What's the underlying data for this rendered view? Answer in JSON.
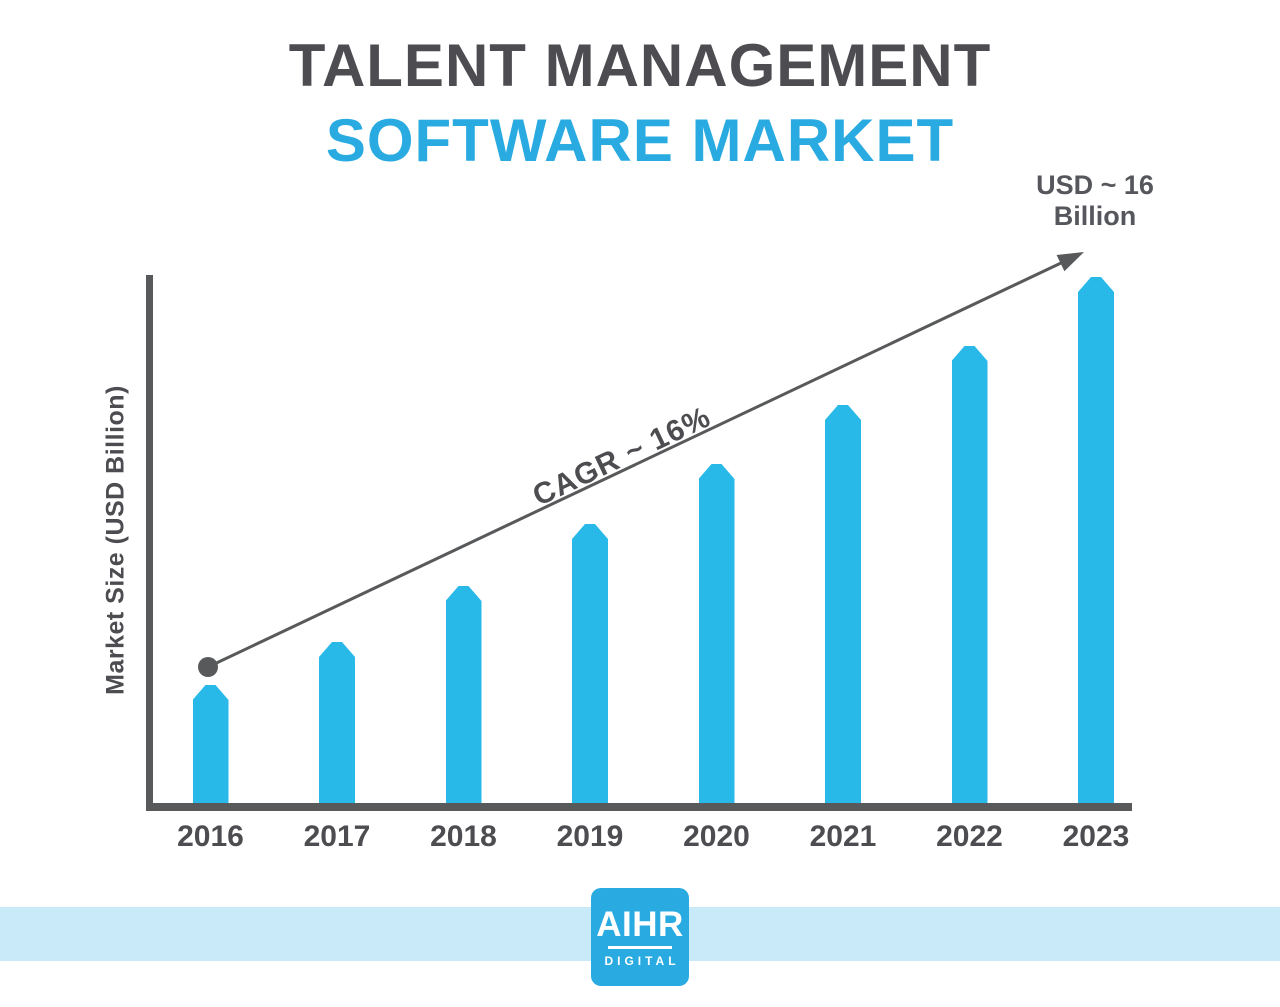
{
  "title": {
    "line1": "TALENT MANAGEMENT",
    "line2": "SOFTWARE MARKET"
  },
  "y_axis_label": "Market Size (USD Billion)",
  "annotations": {
    "cagr_label": "CAGR ~ 16%",
    "endpoint_label_line1": "USD ~ 16",
    "endpoint_label_line2": "Billion"
  },
  "logo": {
    "name": "AIHR",
    "subtitle": "DIGITAL"
  },
  "colors": {
    "bar": "#29B9E9",
    "accent": "#29ABE2",
    "heading": "#4D4D51",
    "text": "#55575C",
    "axis": "#58595B",
    "band": "#C9EBF9"
  },
  "chart_data": {
    "type": "bar",
    "categories": [
      "2016",
      "2017",
      "2018",
      "2019",
      "2020",
      "2021",
      "2022",
      "2023"
    ],
    "values": [
      3.6,
      4.9,
      6.6,
      8.5,
      10.3,
      12.1,
      13.9,
      16
    ],
    "values_estimated": true,
    "unit": "USD Billion",
    "title": "Talent Management Software Market",
    "xlabel": "",
    "ylabel": "Market Size (USD Billion)",
    "ylim": [
      0,
      16
    ],
    "grid": false,
    "legend": false,
    "annotations": [
      "CAGR ~ 16%",
      "USD ~ 16 Billion"
    ]
  }
}
